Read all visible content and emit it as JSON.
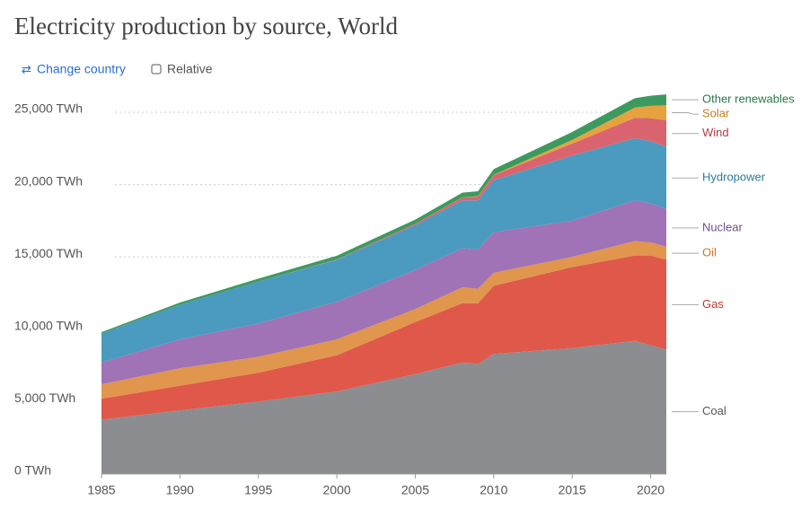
{
  "header": {
    "title": "Electricity production by source, World",
    "change_country": "Change country",
    "relative": "Relative"
  },
  "chart_data": {
    "type": "stacked_area",
    "x": [
      1985,
      1990,
      1995,
      2000,
      2005,
      2008,
      2009,
      2010,
      2015,
      2019,
      2020,
      2021
    ],
    "xlim": [
      1985,
      2021
    ],
    "xticks": [
      1985,
      1990,
      1995,
      2000,
      2005,
      2010,
      2015,
      2020
    ],
    "ylim": [
      0,
      26300
    ],
    "yticks": [
      {
        "value": 0,
        "label": "0 TWh"
      },
      {
        "value": 5000,
        "label": "5,000 TWh"
      },
      {
        "value": 10000,
        "label": "10,000 TWh"
      },
      {
        "value": 15000,
        "label": "15,000 TWh"
      },
      {
        "value": 20000,
        "label": "20,000 TWh"
      },
      {
        "value": 25000,
        "label": "25,000 TWh"
      }
    ],
    "grid": true,
    "series": [
      {
        "name": "Coal",
        "color": "#8c8d91",
        "label_color": "#555",
        "values": [
          3750,
          4400,
          5000,
          5700,
          6900,
          7700,
          7600,
          8300,
          8700,
          9200,
          8900,
          8600
        ]
      },
      {
        "name": "Gas",
        "color": "#e0584a",
        "label_color": "#c0392b",
        "values": [
          1450,
          1700,
          2000,
          2500,
          3600,
          4100,
          4200,
          4700,
          5600,
          5900,
          6200,
          6200
        ]
      },
      {
        "name": "Oil",
        "color": "#e0964c",
        "label_color": "#c77a2a",
        "values": [
          1000,
          1200,
          1100,
          1100,
          900,
          1100,
          1000,
          900,
          700,
          1000,
          900,
          900
        ]
      },
      {
        "name": "Nuclear",
        "color": "#9f73b6",
        "label_color": "#6c4f8a",
        "values": [
          1500,
          2000,
          2300,
          2600,
          2700,
          2700,
          2700,
          2800,
          2500,
          2800,
          2700,
          2600
        ]
      },
      {
        "name": "Hydropower",
        "color": "#4a9bbf",
        "label_color": "#2c7aa0",
        "values": [
          2000,
          2400,
          2900,
          2900,
          3100,
          3300,
          3400,
          3600,
          4500,
          4300,
          4300,
          4300
        ]
      },
      {
        "name": "Wind",
        "color": "#d9646f",
        "label_color": "#b23b45",
        "values": [
          0,
          0,
          0,
          30,
          100,
          200,
          270,
          340,
          830,
          1420,
          1590,
          1850
        ]
      },
      {
        "name": "Solar",
        "color": "#e6a23c",
        "label_color": "#c47d1a",
        "values": [
          0,
          0,
          0,
          0,
          0,
          10,
          20,
          30,
          250,
          700,
          850,
          1030
        ]
      },
      {
        "name": "Other renewables",
        "color": "#3d9a5e",
        "label_color": "#2b7a48",
        "values": [
          100,
          150,
          200,
          250,
          280,
          330,
          350,
          400,
          550,
          650,
          700,
          750
        ]
      }
    ]
  }
}
